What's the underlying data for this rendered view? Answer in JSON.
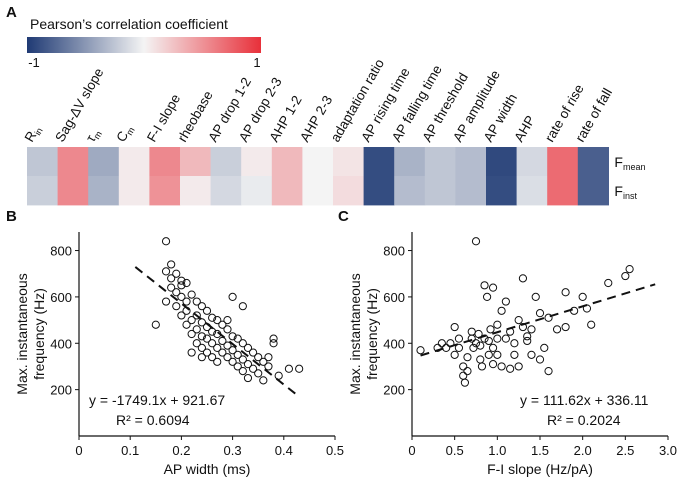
{
  "panels": {
    "a": "A",
    "b": "B",
    "c": "C"
  },
  "colorbar": {
    "title": "Pearson’s correlation coefficient",
    "min_label": "-1",
    "max_label": "1",
    "low_color": "#1f3a74",
    "mid_color": "#f4f4f4",
    "high_color": "#e8303a"
  },
  "heatmap": {
    "columns": [
      {
        "main": "R",
        "sub": "in"
      },
      {
        "main": "Sag-ΔV slope",
        "sub": ""
      },
      {
        "main": "τ",
        "sub": "m"
      },
      {
        "main": "C",
        "sub": "m"
      },
      {
        "main": "F-I slope",
        "sub": ""
      },
      {
        "main": "rheobase",
        "sub": ""
      },
      {
        "main": "AP drop 1-2",
        "sub": ""
      },
      {
        "main": "AP drop 2-3",
        "sub": ""
      },
      {
        "main": "AHP 1-2",
        "sub": ""
      },
      {
        "main": "AHP 2-3",
        "sub": ""
      },
      {
        "main": "adaptation ratio",
        "sub": ""
      },
      {
        "main": "AP rising time",
        "sub": ""
      },
      {
        "main": "AP falling time",
        "sub": ""
      },
      {
        "main": "AP threshold",
        "sub": ""
      },
      {
        "main": "AP amplitude",
        "sub": ""
      },
      {
        "main": "AP width",
        "sub": ""
      },
      {
        "main": "AHP",
        "sub": ""
      },
      {
        "main": "rate of rise",
        "sub": ""
      },
      {
        "main": "rate of fall",
        "sub": ""
      }
    ],
    "rows": [
      {
        "main": "F",
        "sub": "mean"
      },
      {
        "main": "F",
        "sub": "inst"
      }
    ],
    "values": [
      [
        -0.25,
        0.55,
        -0.4,
        0.05,
        0.55,
        0.3,
        -0.2,
        0.05,
        0.3,
        0.0,
        0.08,
        -0.9,
        -0.35,
        -0.25,
        -0.3,
        -0.92,
        -0.15,
        0.7,
        -0.8
      ],
      [
        -0.2,
        0.55,
        -0.35,
        0.05,
        0.5,
        0.05,
        -0.15,
        -0.05,
        0.3,
        0.0,
        0.12,
        -0.9,
        -0.3,
        -0.25,
        -0.3,
        -0.9,
        -0.12,
        0.7,
        -0.8
      ]
    ]
  },
  "chart_data": [
    {
      "type": "scatter",
      "xlabel": "AP width (ms)",
      "ylabel_lines": [
        "Max. instantaneous",
        "frequency (Hz)"
      ],
      "xlim": [
        0,
        0.5
      ],
      "ylim": [
        0,
        880
      ],
      "xticks": [
        "0",
        "0.1",
        "0.2",
        "0.3",
        "0.4",
        "0.5"
      ],
      "yticks": [
        "200",
        "400",
        "600",
        "800"
      ],
      "equation": "y = -1749.1x + 921.67",
      "r2": "R² = 0.6094",
      "fit": {
        "slope": -1749.1,
        "intercept": 921.67,
        "x_range": [
          0.11,
          0.43
        ]
      },
      "points": [
        [
          0.17,
          840
        ],
        [
          0.18,
          740
        ],
        [
          0.17,
          710
        ],
        [
          0.19,
          700
        ],
        [
          0.18,
          680
        ],
        [
          0.2,
          670
        ],
        [
          0.2,
          650
        ],
        [
          0.21,
          660
        ],
        [
          0.18,
          640
        ],
        [
          0.19,
          620
        ],
        [
          0.22,
          610
        ],
        [
          0.2,
          600
        ],
        [
          0.23,
          580
        ],
        [
          0.19,
          560
        ],
        [
          0.21,
          540
        ],
        [
          0.24,
          560
        ],
        [
          0.25,
          540
        ],
        [
          0.2,
          520
        ],
        [
          0.23,
          520
        ],
        [
          0.26,
          510
        ],
        [
          0.22,
          500
        ],
        [
          0.24,
          490
        ],
        [
          0.27,
          500
        ],
        [
          0.21,
          480
        ],
        [
          0.25,
          470
        ],
        [
          0.28,
          480
        ],
        [
          0.23,
          460
        ],
        [
          0.26,
          450
        ],
        [
          0.29,
          460
        ],
        [
          0.22,
          440
        ],
        [
          0.24,
          430
        ],
        [
          0.27,
          440
        ],
        [
          0.3,
          430
        ],
        [
          0.25,
          420
        ],
        [
          0.28,
          410
        ],
        [
          0.31,
          420
        ],
        [
          0.23,
          400
        ],
        [
          0.26,
          400
        ],
        [
          0.29,
          390
        ],
        [
          0.32,
          400
        ],
        [
          0.24,
          380
        ],
        [
          0.27,
          380
        ],
        [
          0.3,
          370
        ],
        [
          0.33,
          380
        ],
        [
          0.25,
          360
        ],
        [
          0.28,
          360
        ],
        [
          0.31,
          350
        ],
        [
          0.34,
          360
        ],
        [
          0.26,
          340
        ],
        [
          0.29,
          340
        ],
        [
          0.32,
          330
        ],
        [
          0.35,
          340
        ],
        [
          0.3,
          320
        ],
        [
          0.33,
          310
        ],
        [
          0.36,
          320
        ],
        [
          0.31,
          300
        ],
        [
          0.34,
          290
        ],
        [
          0.37,
          300
        ],
        [
          0.32,
          280
        ],
        [
          0.35,
          270
        ],
        [
          0.33,
          250
        ],
        [
          0.36,
          240
        ],
        [
          0.39,
          260
        ],
        [
          0.41,
          290
        ],
        [
          0.43,
          290
        ],
        [
          0.38,
          400
        ],
        [
          0.38,
          420
        ],
        [
          0.37,
          340
        ],
        [
          0.3,
          600
        ],
        [
          0.32,
          560
        ],
        [
          0.29,
          500
        ],
        [
          0.21,
          580
        ],
        [
          0.17,
          580
        ],
        [
          0.15,
          480
        ],
        [
          0.27,
          320
        ],
        [
          0.24,
          340
        ],
        [
          0.22,
          360
        ]
      ]
    },
    {
      "type": "scatter",
      "xlabel": "F-I slope (Hz/pA)",
      "ylabel_lines": [
        "Max. instantaneous",
        "frequency (Hz)"
      ],
      "xlim": [
        0,
        3.0
      ],
      "ylim": [
        0,
        880
      ],
      "xticks": [
        "0",
        "0.5",
        "1.0",
        "1.5",
        "2.0",
        "2.5",
        "3.0"
      ],
      "yticks": [
        "200",
        "400",
        "600",
        "800"
      ],
      "equation": "y = 111.62x + 336.11",
      "r2": "R² = 0.2024",
      "fit": {
        "slope": 111.62,
        "intercept": 336.11,
        "x_range": [
          0.1,
          2.85
        ]
      },
      "points": [
        [
          0.1,
          370
        ],
        [
          0.3,
          380
        ],
        [
          0.35,
          400
        ],
        [
          0.4,
          380
        ],
        [
          0.45,
          400
        ],
        [
          0.5,
          350
        ],
        [
          0.5,
          470
        ],
        [
          0.55,
          380
        ],
        [
          0.6,
          300
        ],
        [
          0.6,
          260
        ],
        [
          0.62,
          230
        ],
        [
          0.65,
          280
        ],
        [
          0.7,
          420
        ],
        [
          0.7,
          450
        ],
        [
          0.72,
          380
        ],
        [
          0.75,
          400
        ],
        [
          0.75,
          840
        ],
        [
          0.78,
          440
        ],
        [
          0.8,
          330
        ],
        [
          0.8,
          390
        ],
        [
          0.82,
          300
        ],
        [
          0.85,
          420
        ],
        [
          0.85,
          650
        ],
        [
          0.88,
          600
        ],
        [
          0.9,
          410
        ],
        [
          0.9,
          350
        ],
        [
          0.92,
          460
        ],
        [
          0.95,
          380
        ],
        [
          0.95,
          310
        ],
        [
          1.0,
          420
        ],
        [
          1.0,
          480
        ],
        [
          1.0,
          350
        ],
        [
          1.05,
          300
        ],
        [
          1.05,
          540
        ],
        [
          1.1,
          420
        ],
        [
          1.1,
          580
        ],
        [
          1.15,
          450
        ],
        [
          1.2,
          400
        ],
        [
          1.2,
          350
        ],
        [
          1.25,
          500
        ],
        [
          1.25,
          300
        ],
        [
          1.3,
          470
        ],
        [
          1.3,
          680
        ],
        [
          1.35,
          430
        ],
        [
          1.4,
          350
        ],
        [
          1.4,
          460
        ],
        [
          1.45,
          600
        ],
        [
          1.5,
          530
        ],
        [
          1.5,
          330
        ],
        [
          1.55,
          380
        ],
        [
          1.6,
          280
        ],
        [
          1.6,
          510
        ],
        [
          1.7,
          460
        ],
        [
          1.8,
          470
        ],
        [
          1.9,
          540
        ],
        [
          2.0,
          600
        ],
        [
          2.05,
          550
        ],
        [
          2.1,
          480
        ],
        [
          2.3,
          660
        ],
        [
          2.5,
          690
        ],
        [
          2.55,
          720
        ],
        [
          1.8,
          620
        ],
        [
          0.95,
          640
        ],
        [
          0.65,
          340
        ],
        [
          1.15,
          290
        ],
        [
          0.55,
          420
        ],
        [
          1.35,
          410
        ]
      ]
    }
  ]
}
